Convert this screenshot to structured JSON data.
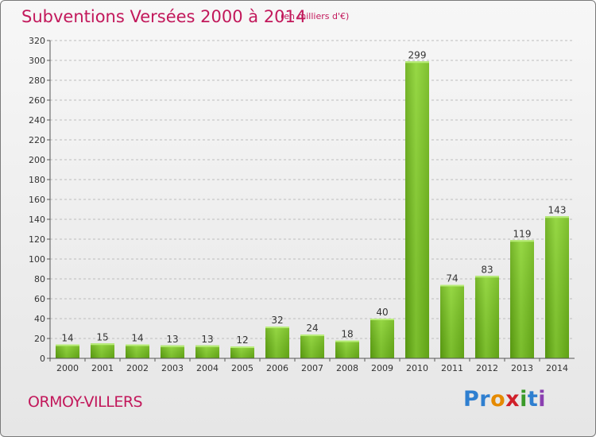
{
  "chart_data": {
    "type": "bar",
    "title": "Subventions Versées 2000 à 2014",
    "subtitle": "(en milliers d'€)",
    "categories": [
      "2000",
      "2001",
      "2002",
      "2003",
      "2004",
      "2005",
      "2006",
      "2007",
      "2008",
      "2009",
      "2010",
      "2011",
      "2012",
      "2013",
      "2014"
    ],
    "values": [
      14,
      15,
      14,
      13,
      13,
      12,
      32,
      24,
      18,
      40,
      299,
      74,
      83,
      119,
      143
    ],
    "data_labels": [
      "14",
      "15",
      "14",
      "13",
      "13",
      "12",
      "32",
      "24",
      "18",
      "40",
      "299",
      "74",
      "83",
      "119",
      "143"
    ],
    "ylim": [
      0,
      320
    ],
    "yticks": [
      0,
      20,
      40,
      60,
      80,
      100,
      120,
      140,
      160,
      180,
      200,
      220,
      240,
      260,
      280,
      300,
      320
    ],
    "ytick_labels": [
      "0",
      "20",
      "40",
      "60",
      "80",
      "100",
      "120",
      "140",
      "160",
      "180",
      "200",
      "220",
      "240",
      "260",
      "280",
      "300",
      "320"
    ],
    "grid": "horizontal dashed",
    "bar_color": "#7cc427",
    "title_color": "#c2185b"
  },
  "commune": "ORMOY-VILLERS",
  "logo": {
    "p1": "Pr",
    "p2": "o",
    "p3": "x",
    "p4": "i",
    "p5": "t",
    "p6": "i"
  }
}
